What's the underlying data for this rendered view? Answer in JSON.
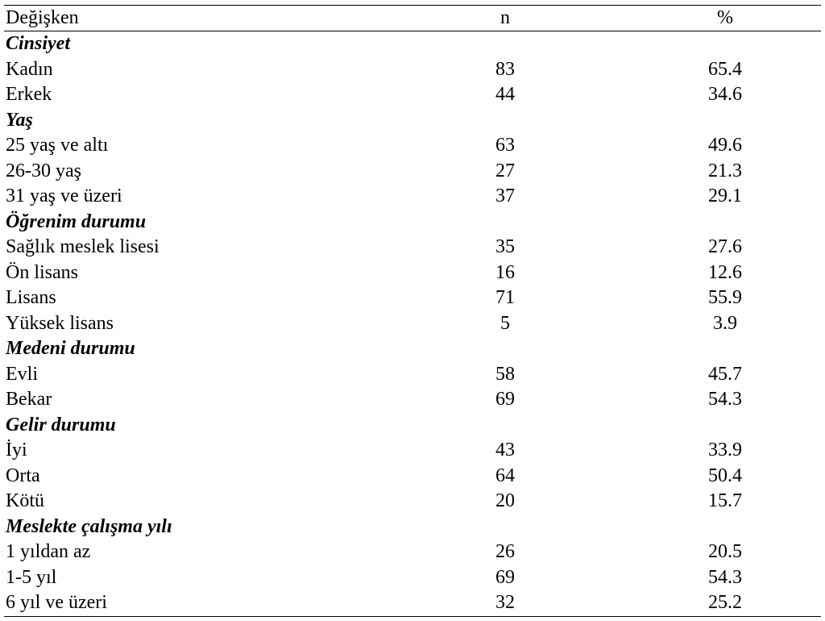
{
  "headers": {
    "variable": "Değişken",
    "n": "n",
    "pct": "%"
  },
  "groups": [
    {
      "title": "Cinsiyet",
      "rows": [
        {
          "label": "Kadın",
          "n": "83",
          "pct": "65.4"
        },
        {
          "label": "Erkek",
          "n": "44",
          "pct": "34.6"
        }
      ]
    },
    {
      "title": "Yaş",
      "rows": [
        {
          "label": "25 yaş ve altı",
          "n": "63",
          "pct": "49.6"
        },
        {
          "label": "26-30 yaş",
          "n": "27",
          "pct": "21.3"
        },
        {
          "label": "31 yaş ve üzeri",
          "n": "37",
          "pct": "29.1"
        }
      ]
    },
    {
      "title": "Öğrenim durumu",
      "rows": [
        {
          "label": "Sağlık meslek lisesi",
          "n": "35",
          "pct": "27.6"
        },
        {
          "label": "Ön lisans",
          "n": "16",
          "pct": "12.6"
        },
        {
          "label": "Lisans",
          "n": "71",
          "pct": "55.9"
        },
        {
          "label": "Yüksek lisans",
          "n": "5",
          "pct": "3.9"
        }
      ]
    },
    {
      "title": "Medeni durumu",
      "rows": [
        {
          "label": "Evli",
          "n": "58",
          "pct": "45.7"
        },
        {
          "label": "Bekar",
          "n": "69",
          "pct": "54.3"
        }
      ]
    },
    {
      "title": "Gelir durumu",
      "rows": [
        {
          "label": "İyi",
          "n": "43",
          "pct": "33.9"
        },
        {
          "label": "Orta",
          "n": "64",
          "pct": "50.4"
        },
        {
          "label": "Kötü",
          "n": "20",
          "pct": "15.7"
        }
      ]
    },
    {
      "title": "Meslekte çalışma yılı",
      "rows": [
        {
          "label": "1 yıldan az",
          "n": "26",
          "pct": "20.5"
        },
        {
          "label": "1-5 yıl",
          "n": "69",
          "pct": "54.3"
        },
        {
          "label": "6 yıl ve üzeri",
          "n": "32",
          "pct": "25.2"
        }
      ]
    }
  ]
}
